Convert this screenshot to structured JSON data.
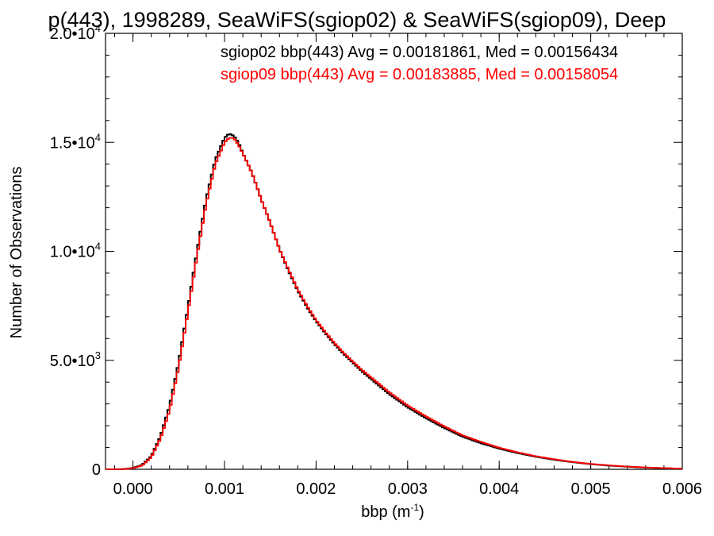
{
  "chart_data": {
    "type": "line",
    "title": "p(443), 1998289, SeaWiFS(sgiop02) & SeaWiFS(sgiop09), Deep",
    "xlabel": "bbp (m",
    "xlabel_sup": "-1",
    "xlabel_end": ")",
    "ylabel": "Number of Observations",
    "xlim": [
      -0.0003,
      0.006
    ],
    "ylim": [
      0,
      20000
    ],
    "grid": false,
    "x_ticks": [
      {
        "value": 0.0,
        "label": "0.000"
      },
      {
        "value": 0.001,
        "label": "0.001"
      },
      {
        "value": 0.002,
        "label": "0.002"
      },
      {
        "value": 0.003,
        "label": "0.003"
      },
      {
        "value": 0.004,
        "label": "0.004"
      },
      {
        "value": 0.005,
        "label": "0.005"
      },
      {
        "value": 0.006,
        "label": "0.006"
      }
    ],
    "y_ticks": [
      {
        "value": 0,
        "mant": "0",
        "exp": ""
      },
      {
        "value": 5000,
        "mant": "5.0•10",
        "exp": "3"
      },
      {
        "value": 10000,
        "mant": "1.0•10",
        "exp": "4"
      },
      {
        "value": 15000,
        "mant": "1.5•10",
        "exp": "4"
      },
      {
        "value": 20000,
        "mant": "2.0•10",
        "exp": "4"
      }
    ],
    "x": [
      -0.0003,
      -0.0002,
      -0.0001,
      0.0,
      0.0001,
      0.0002,
      0.0003,
      0.0004,
      0.0005,
      0.0006,
      0.0007,
      0.0008,
      0.0009,
      0.001,
      0.00105,
      0.0011,
      0.00115,
      0.0012,
      0.0013,
      0.0014,
      0.0015,
      0.0016,
      0.0017,
      0.0018,
      0.0019,
      0.002,
      0.0021,
      0.0022,
      0.0023,
      0.0024,
      0.0025,
      0.0026,
      0.0027,
      0.0028,
      0.0029,
      0.003,
      0.0032,
      0.0034,
      0.0036,
      0.0038,
      0.004,
      0.0042,
      0.0044,
      0.0046,
      0.0048,
      0.005,
      0.0052,
      0.0054,
      0.0056,
      0.0058,
      0.006
    ],
    "series": [
      {
        "name": "sgiop02",
        "legend": "sgiop02 bbp(443) Avg = 0.00181861, Med = 0.00156434",
        "color": "#000000",
        "values": [
          0,
          0,
          10,
          60,
          200,
          600,
          1500,
          2900,
          4900,
          7400,
          10000,
          12400,
          14200,
          15200,
          15400,
          15300,
          15000,
          14500,
          13600,
          12400,
          11300,
          10100,
          9100,
          8200,
          7450,
          6800,
          6250,
          5750,
          5300,
          4900,
          4500,
          4150,
          3800,
          3450,
          3150,
          2850,
          2350,
          1900,
          1500,
          1200,
          950,
          750,
          580,
          440,
          330,
          240,
          170,
          120,
          80,
          50,
          30
        ]
      },
      {
        "name": "sgiop09",
        "legend": "sgiop09 bbp(443) Avg = 0.00183885, Med = 0.00158054",
        "color": "#ff0000",
        "values": [
          0,
          0,
          10,
          50,
          170,
          550,
          1400,
          2700,
          4700,
          7200,
          9800,
          12200,
          14000,
          15000,
          15200,
          15200,
          14900,
          14500,
          13600,
          12400,
          11300,
          10100,
          9150,
          8250,
          7500,
          6850,
          6300,
          5800,
          5350,
          4950,
          4560,
          4220,
          3880,
          3530,
          3230,
          2930,
          2430,
          1970,
          1560,
          1260,
          990,
          780,
          600,
          460,
          340,
          250,
          180,
          125,
          85,
          55,
          30
        ]
      }
    ]
  }
}
